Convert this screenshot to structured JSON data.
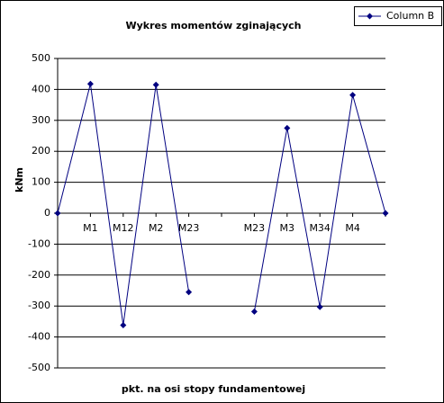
{
  "chart_data": {
    "type": "line",
    "title": "Wykres momentów zginających",
    "x_label": "pkt. na osi stopy fundamentowej",
    "y_label": "kNm",
    "categories": [
      null,
      "M1",
      "M12",
      "M2",
      "M23",
      null,
      "M23",
      "M3",
      "M34",
      "M4",
      null
    ],
    "series": [
      {
        "name": "Column B",
        "color": "#000080",
        "values": [
          0,
          418,
          -362,
          415,
          -255,
          null,
          -318,
          275,
          -303,
          382,
          0
        ]
      }
    ],
    "ylim": [
      -500,
      500
    ],
    "yticks": [
      -500,
      -400,
      -300,
      -200,
      -100,
      0,
      100,
      200,
      300,
      400,
      500
    ],
    "grid": true,
    "legend": "top-right"
  }
}
